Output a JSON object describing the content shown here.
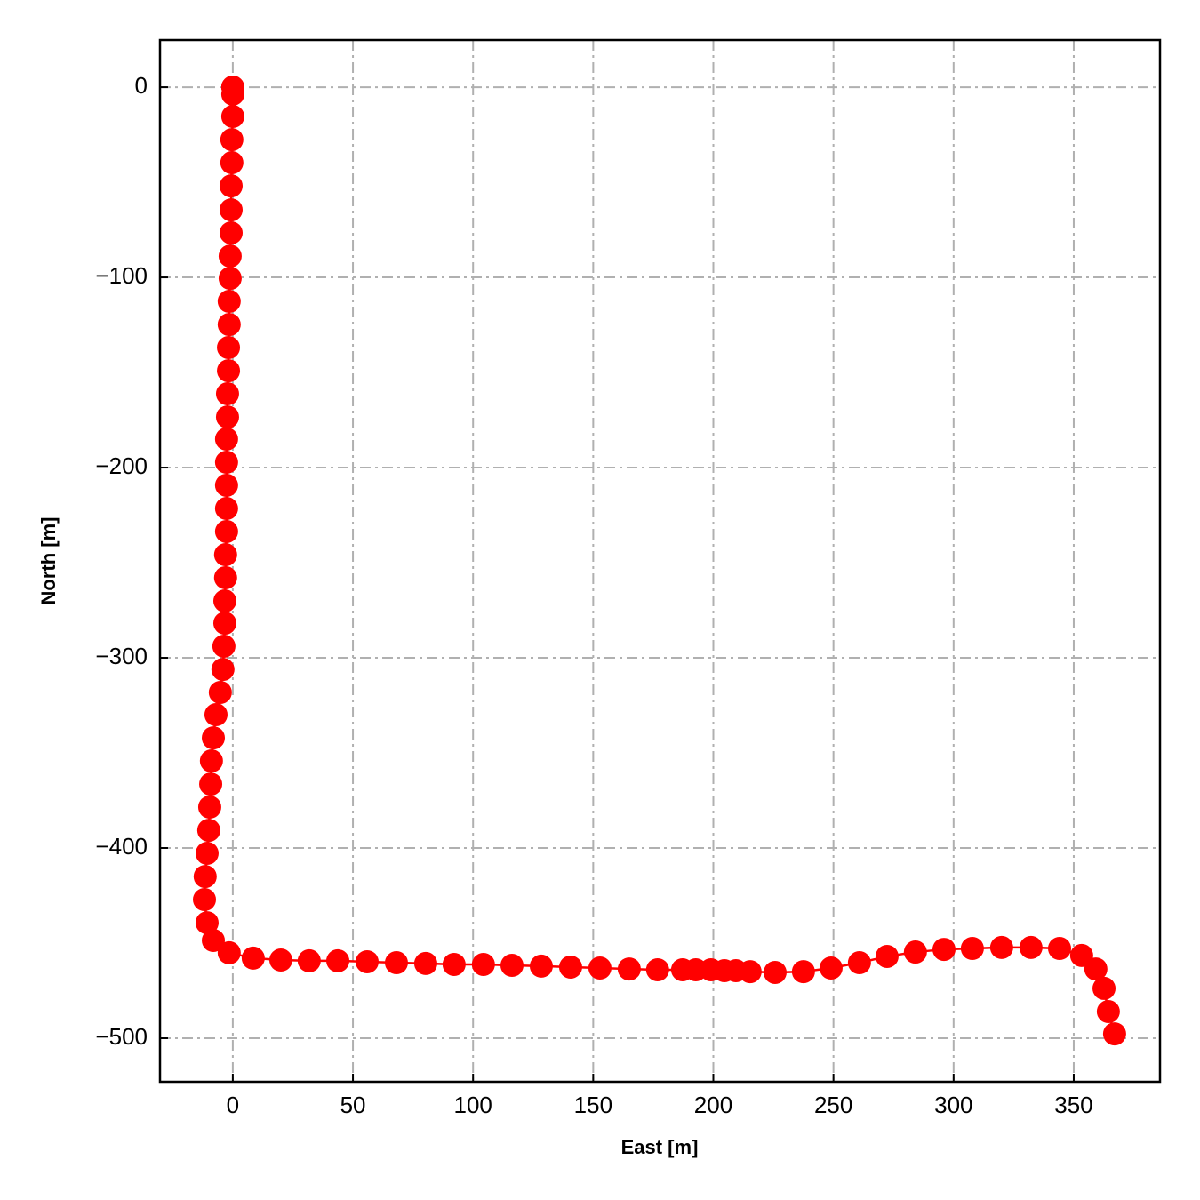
{
  "chart_data": {
    "type": "line",
    "marker": "circle",
    "color": "#ff0000",
    "xlabel": "East [m]",
    "ylabel": "North [m]",
    "xlim": [
      -30.3,
      385.9
    ],
    "ylim": [
      -522.9,
      24.8
    ],
    "xticks": [
      0,
      50,
      100,
      150,
      200,
      250,
      300,
      350
    ],
    "yticks": [
      {
        "value": -500,
        "label": "−500"
      },
      {
        "value": -400,
        "label": "−400"
      },
      {
        "value": -300,
        "label": "−300"
      },
      {
        "value": -200,
        "label": "−200"
      },
      {
        "value": -100,
        "label": "−100"
      },
      0
    ],
    "grid": true,
    "x": [
      0,
      0,
      0,
      0,
      -0.4,
      -0.4,
      -0.7,
      -0.7,
      -0.7,
      -1.1,
      -1.1,
      -1.5,
      -1.5,
      -1.8,
      -1.8,
      -2.2,
      -2.2,
      -2.6,
      -2.6,
      -2.6,
      -2.6,
      -2.6,
      -3.0,
      -3.0,
      -3.3,
      -3.3,
      -3.7,
      -4.1,
      -5.2,
      -7.0,
      -8.1,
      -8.9,
      -9.2,
      -9.6,
      -10.0,
      -10.7,
      -11.5,
      -11.8,
      -10.7,
      -8.1,
      -1.5,
      8.5,
      20.0,
      31.8,
      43.7,
      55.9,
      68.1,
      80.3,
      92.1,
      104.3,
      116.2,
      128.4,
      140.6,
      152.8,
      165.0,
      176.8,
      187.2,
      192.7,
      199.0,
      204.6,
      209.4,
      215.3,
      225.7,
      237.5,
      249.0,
      260.8,
      272.3,
      284.1,
      296.0,
      307.8,
      320.0,
      332.2,
      344.1,
      353.3,
      359.2,
      362.6,
      364.4,
      367.0
    ],
    "values": [
      0,
      0,
      -3.7,
      -15.4,
      -27.6,
      -39.7,
      -51.9,
      -64.5,
      -76.6,
      -88.8,
      -100.5,
      -112.6,
      -124.8,
      -136.9,
      -149.1,
      -161.2,
      -173.4,
      -185.0,
      -197.2,
      -209.3,
      -221.5,
      -233.6,
      -245.8,
      -257.9,
      -270.1,
      -281.8,
      -293.9,
      -306.1,
      -318.2,
      -329.9,
      -342.1,
      -354.2,
      -366.4,
      -378.5,
      -390.7,
      -402.8,
      -415.0,
      -427.1,
      -439.3,
      -448.6,
      -455.1,
      -457.9,
      -458.9,
      -459.3,
      -459.3,
      -459.8,
      -460.3,
      -460.7,
      -461.2,
      -461.2,
      -461.7,
      -462.1,
      -462.6,
      -463.1,
      -463.6,
      -464.0,
      -464.0,
      -464.0,
      -464.0,
      -464.5,
      -464.5,
      -465.0,
      -465.4,
      -465.0,
      -463.1,
      -460.3,
      -457.0,
      -454.7,
      -453.3,
      -452.8,
      -452.3,
      -452.3,
      -452.8,
      -456.5,
      -463.6,
      -473.8,
      -486.0,
      -497.7
    ]
  }
}
